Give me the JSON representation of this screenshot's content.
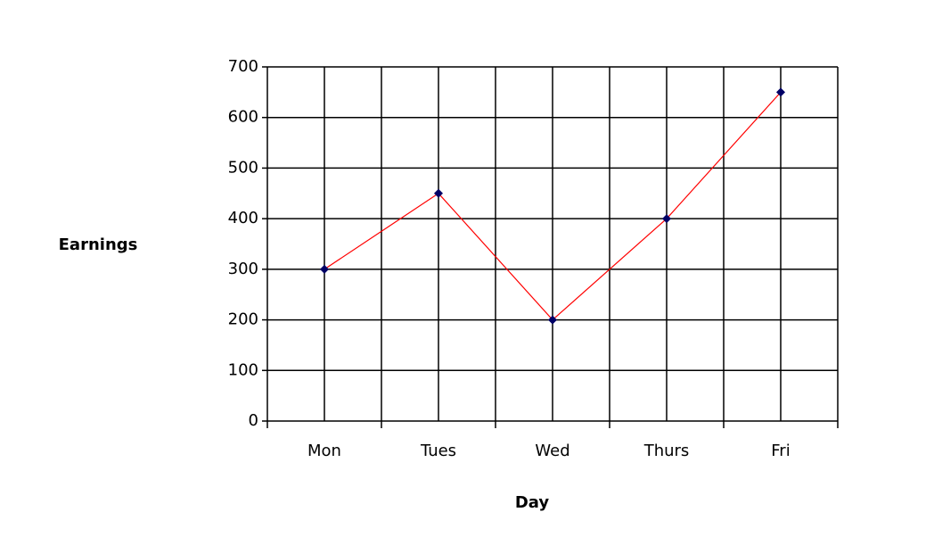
{
  "chart_data": {
    "type": "line",
    "x_label": "Day",
    "y_label": "Earnings",
    "categories": [
      "Mon",
      "Tues",
      "Wed",
      "Thurs",
      "Fri"
    ],
    "series": [
      {
        "name": "Earnings",
        "color": "#ff0000",
        "marker_color": "#000066",
        "values": [
          300,
          450,
          200,
          400,
          650
        ]
      }
    ],
    "ylim": [
      0,
      700
    ],
    "yticks": [
      0,
      100,
      200,
      300,
      400,
      500,
      600,
      700
    ],
    "grid": true,
    "legend": false
  }
}
